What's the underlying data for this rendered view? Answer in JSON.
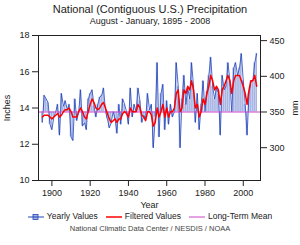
{
  "chart_data": {
    "type": "bar",
    "title": "National (Contiguous U.S.) Precipitation",
    "subtitle": "August - January, 1895 - 2008",
    "annotations": [
      "National Climatic Data Center / NESDIS / NOAA"
    ],
    "xlabel": "Year",
    "ylabel": "Inches",
    "y2label": "mm",
    "x": [
      1895,
      1896,
      1897,
      1898,
      1899,
      1900,
      1901,
      1902,
      1903,
      1904,
      1905,
      1906,
      1907,
      1908,
      1909,
      1910,
      1911,
      1912,
      1913,
      1914,
      1915,
      1916,
      1917,
      1918,
      1919,
      1920,
      1921,
      1922,
      1923,
      1924,
      1925,
      1926,
      1927,
      1928,
      1929,
      1930,
      1931,
      1932,
      1933,
      1934,
      1935,
      1936,
      1937,
      1938,
      1939,
      1940,
      1941,
      1942,
      1943,
      1944,
      1945,
      1946,
      1947,
      1948,
      1949,
      1950,
      1951,
      1952,
      1953,
      1954,
      1955,
      1956,
      1957,
      1958,
      1959,
      1960,
      1961,
      1962,
      1963,
      1964,
      1965,
      1966,
      1967,
      1968,
      1969,
      1970,
      1971,
      1972,
      1973,
      1974,
      1975,
      1976,
      1977,
      1978,
      1979,
      1980,
      1981,
      1982,
      1983,
      1984,
      1985,
      1986,
      1987,
      1988,
      1989,
      1990,
      1991,
      1992,
      1993,
      1994,
      1995,
      1996,
      1997,
      1998,
      1999,
      2000,
      2001,
      2002,
      2003,
      2004,
      2005,
      2006,
      2007
    ],
    "series": [
      {
        "name": "Yearly Values",
        "type": "bar",
        "color": "#2244bb",
        "values": [
          13.2,
          14.7,
          14.5,
          14.3,
          13.1,
          12.8,
          13.5,
          13.8,
          14.2,
          12.5,
          14.8,
          14.1,
          14.4,
          13.9,
          14.2,
          12.4,
          12.2,
          14.5,
          13.3,
          13.8,
          15.0,
          13.0,
          13.2,
          12.8,
          14.5,
          14.8,
          15.0,
          14.1,
          13.5,
          14.2,
          14.6,
          14.7,
          15.1,
          13.8,
          13.4,
          12.9,
          13.2,
          13.8,
          13.4,
          12.6,
          14.2,
          13.1,
          14.5,
          14.2,
          13.8,
          13.1,
          15.1,
          13.5,
          14.2,
          13.8,
          15.1,
          14.4,
          13.2,
          13.6,
          13.4,
          14.8,
          13.9,
          14.2,
          11.8,
          13.5,
          16.5,
          12.4,
          14.8,
          15.3,
          12.8,
          14.4,
          13.1,
          14.2,
          13.5,
          13.8,
          16.5,
          15.2,
          11.8,
          14.5,
          15.8,
          14.2,
          15.1,
          14.5,
          16.5,
          15.2,
          13.2,
          14.8,
          12.8,
          14.2,
          15.5,
          13.8,
          14.9,
          15.8,
          16.8,
          15.2,
          14.5,
          15.1,
          14.8,
          12.5,
          15.8,
          15.0,
          15.2,
          16.5,
          15.5,
          13.8,
          16.2,
          16.5,
          15.8,
          16.2,
          17.0,
          15.5,
          14.2,
          12.5,
          14.8,
          15.5,
          15.5,
          16.5,
          17.0
        ]
      },
      {
        "name": "Filtered Values",
        "type": "line",
        "color": "red",
        "values": [
          13.5,
          13.6,
          13.6,
          13.6,
          13.5,
          13.4,
          13.5,
          13.6,
          13.7,
          13.5,
          13.6,
          13.8,
          13.9,
          13.9,
          14.0,
          13.8,
          13.5,
          13.5,
          13.5,
          13.8,
          14.0,
          13.8,
          13.5,
          13.4,
          13.8,
          14.2,
          14.5,
          14.3,
          14.0,
          13.9,
          14.0,
          14.2,
          14.3,
          14.0,
          13.7,
          13.4,
          13.2,
          13.3,
          13.4,
          13.2,
          13.4,
          13.4,
          13.7,
          13.8,
          13.7,
          13.5,
          14.0,
          13.8,
          13.8,
          13.8,
          14.2,
          14.0,
          13.6,
          13.5,
          13.3,
          13.8,
          13.8,
          13.6,
          13.0,
          13.2,
          14.0,
          13.5,
          13.8,
          14.2,
          13.5,
          14.0,
          13.5,
          13.8,
          13.8,
          14.0,
          14.8,
          15.0,
          13.8,
          14.0,
          15.0,
          14.8,
          15.2,
          15.0,
          15.5,
          15.0,
          14.0,
          14.2,
          13.5,
          13.8,
          14.5,
          14.2,
          14.8,
          15.2,
          15.8,
          15.5,
          15.0,
          15.2,
          15.0,
          14.2,
          15.0,
          15.2,
          15.5,
          15.8,
          15.5,
          14.8,
          15.5,
          15.8,
          15.8,
          15.8,
          15.5,
          15.2,
          14.8,
          14.2,
          15.0,
          15.5,
          15.5,
          15.8,
          15.2
        ]
      },
      {
        "name": "Long-Term Mean",
        "type": "rule",
        "color": "#cc44cc",
        "value": 13.78
      }
    ],
    "xlim": [
      1893,
      2009
    ],
    "xticks": [
      1900,
      1920,
      1940,
      1960,
      1980,
      2000
    ],
    "ylim": [
      10.0,
      18.0
    ],
    "yticks": [
      10.0,
      12.0,
      14.0,
      16.0,
      18.0
    ],
    "y2lim": [
      254,
      457.2
    ],
    "y2ticks": [
      300,
      350,
      400,
      450
    ],
    "grid": false,
    "legend": "bottom"
  }
}
